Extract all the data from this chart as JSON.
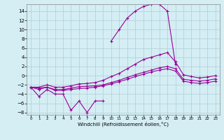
{
  "x": [
    0,
    1,
    2,
    3,
    4,
    5,
    6,
    7,
    8,
    9,
    10,
    11,
    12,
    13,
    14,
    15,
    16,
    17,
    18,
    19,
    20,
    21,
    22,
    23
  ],
  "line1_x": [
    0,
    1,
    2,
    3,
    4,
    5,
    6,
    7,
    8,
    9
  ],
  "line1_y": [
    -2.5,
    -4.5,
    -3.0,
    -4.0,
    -4.0,
    -7.5,
    -5.5,
    -8.0,
    -5.5,
    -5.5
  ],
  "line2_x": [
    0,
    1,
    2,
    3,
    4,
    5,
    6,
    7,
    8,
    9,
    10,
    11,
    12,
    13,
    14,
    15,
    16,
    17,
    18,
    19,
    20,
    21,
    22,
    23
  ],
  "line2_y": [
    -2.5,
    -3.0,
    -2.5,
    -3.2,
    -3.2,
    -3.0,
    -2.8,
    -2.7,
    -2.5,
    -2.2,
    -1.8,
    -1.3,
    -0.8,
    -0.2,
    0.3,
    0.8,
    1.2,
    1.5,
    1.0,
    -1.2,
    -1.5,
    -1.7,
    -1.5,
    -1.2
  ],
  "line3_x": [
    0,
    1,
    2,
    3,
    4,
    5,
    6,
    7,
    8,
    9,
    10,
    11,
    12,
    13,
    14,
    15,
    16,
    17,
    18,
    19,
    20,
    21,
    22,
    23
  ],
  "line3_y": [
    -2.5,
    -2.7,
    -2.5,
    -3.0,
    -3.0,
    -2.7,
    -2.4,
    -2.3,
    -2.2,
    -2.0,
    -1.5,
    -1.0,
    -0.4,
    0.2,
    0.7,
    1.2,
    1.7,
    2.0,
    1.5,
    -0.8,
    -1.0,
    -1.2,
    -1.0,
    -0.7
  ],
  "line4_x": [
    0,
    1,
    2,
    3,
    4,
    5,
    6,
    7,
    8,
    9,
    10,
    11,
    12,
    13,
    14,
    15,
    16,
    17,
    18,
    19,
    20,
    21,
    22,
    23
  ],
  "line4_y": [
    -2.5,
    -2.5,
    -2.0,
    -2.5,
    -2.5,
    -2.2,
    -1.8,
    -1.7,
    -1.5,
    -1.0,
    -0.2,
    0.5,
    1.5,
    2.5,
    3.5,
    4.0,
    4.5,
    5.0,
    3.0,
    0.2,
    -0.2,
    -0.5,
    -0.3,
    0.0
  ],
  "line5_x": [
    10,
    11,
    12,
    13,
    14,
    15,
    16,
    17,
    18
  ],
  "line5_y": [
    7.5,
    10.0,
    12.5,
    14.0,
    15.0,
    15.5,
    15.5,
    14.0,
    2.5
  ],
  "color": "#990099",
  "bg_color": "#d4eef4",
  "grid_color": "#b0ccd6",
  "xlabel": "Windchill (Refroidissement éolien,°C)",
  "ylim": [
    -8.5,
    15.5
  ],
  "xlim": [
    -0.5,
    23.5
  ],
  "yticks": [
    -8,
    -6,
    -4,
    -2,
    0,
    2,
    4,
    6,
    8,
    10,
    12,
    14
  ],
  "xticks": [
    0,
    1,
    2,
    3,
    4,
    5,
    6,
    7,
    8,
    9,
    10,
    11,
    12,
    13,
    14,
    15,
    16,
    17,
    18,
    19,
    20,
    21,
    22,
    23
  ]
}
